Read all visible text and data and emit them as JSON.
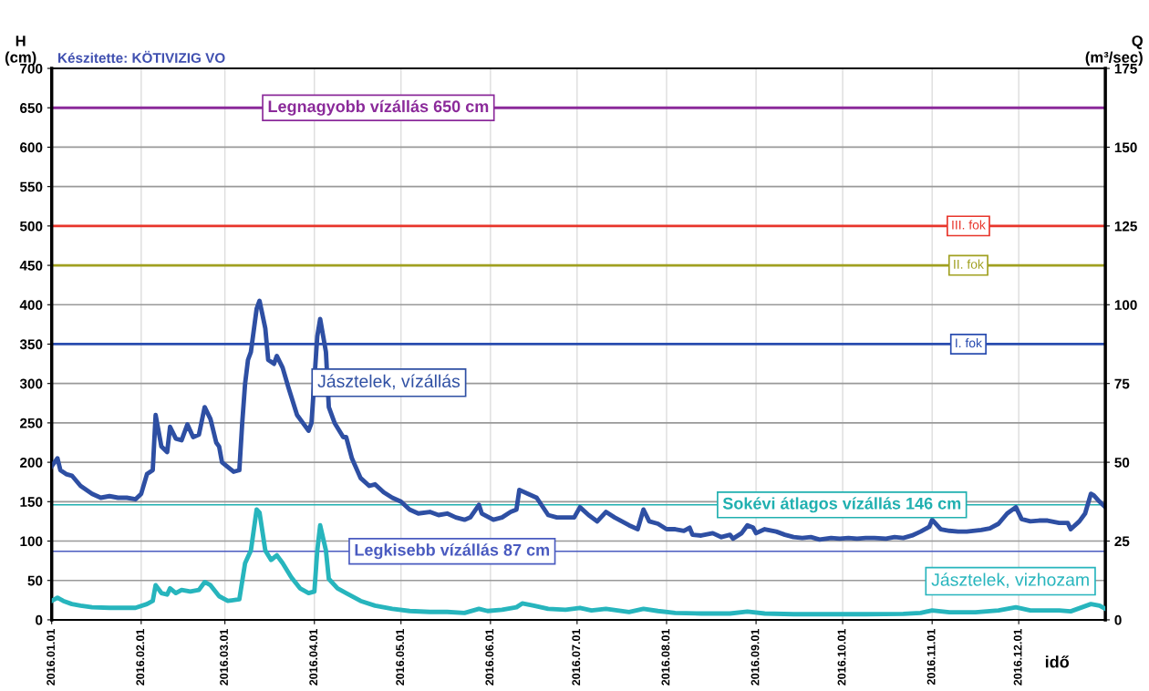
{
  "chart_data": {
    "type": "line",
    "ylabel": "H\n(cm)",
    "y2label": "Q\n(m³/sec)",
    "xlabel": "idő",
    "annotations": [
      "Készitette: KÖTIVIZIG VO"
    ],
    "xlim": [
      "2016-01-01",
      "2016-12-31"
    ],
    "xticks": [
      {
        "value": "2016-01-01",
        "label": "2016.01.01"
      },
      {
        "value": "2016-02-01",
        "label": "2016.02.01"
      },
      {
        "value": "2016-03-01",
        "label": "2016.03.01"
      },
      {
        "value": "2016-04-01",
        "label": "2016.04.01"
      },
      {
        "value": "2016-05-01",
        "label": "2016.05.01"
      },
      {
        "value": "2016-06-01",
        "label": "2016.06.01"
      },
      {
        "value": "2016-07-01",
        "label": "2016.07.01"
      },
      {
        "value": "2016-08-01",
        "label": "2016.08.01"
      },
      {
        "value": "2016-09-01",
        "label": "2016.09.01"
      },
      {
        "value": "2016-10-01",
        "label": "2016.10.01"
      },
      {
        "value": "2016-11-01",
        "label": "2016.11.01"
      },
      {
        "value": "2016-12-01",
        "label": "2016.12.01"
      }
    ],
    "ylim": [
      0,
      700
    ],
    "yticks": [
      0,
      50,
      100,
      150,
      200,
      250,
      300,
      350,
      400,
      450,
      500,
      550,
      600,
      650,
      700
    ],
    "y2lim": [
      0,
      175
    ],
    "y2ticks": [
      0,
      25,
      50,
      75,
      100,
      125,
      150,
      175
    ],
    "grid": true,
    "legend": false,
    "marker": "none",
    "line_style": "solid",
    "series": [
      {
        "name": "Jásztelek, vízállás",
        "color": "#2e4fa3",
        "x": [
          "2016-01-01",
          "2016-01-03",
          "2016-01-04",
          "2016-01-06",
          "2016-01-08",
          "2016-01-11",
          "2016-01-15",
          "2016-01-18",
          "2016-01-21",
          "2016-01-24",
          "2016-01-27",
          "2016-01-30",
          "2016-02-01",
          "2016-02-03",
          "2016-02-05",
          "2016-02-06",
          "2016-02-08",
          "2016-02-10",
          "2016-02-11",
          "2016-02-13",
          "2016-02-15",
          "2016-02-17",
          "2016-02-19",
          "2016-02-21",
          "2016-02-23",
          "2016-02-25",
          "2016-02-27",
          "2016-02-28",
          "2016-02-29",
          "2016-03-04",
          "2016-03-06",
          "2016-03-07",
          "2016-03-08",
          "2016-03-09",
          "2016-03-10",
          "2016-03-12",
          "2016-03-13",
          "2016-03-15",
          "2016-03-16",
          "2016-03-18",
          "2016-03-19",
          "2016-03-21",
          "2016-03-23",
          "2016-03-26",
          "2016-03-28",
          "2016-03-30",
          "2016-03-31",
          "2016-04-02",
          "2016-04-03",
          "2016-04-05",
          "2016-04-06",
          "2016-04-08",
          "2016-04-11",
          "2016-04-12",
          "2016-04-14",
          "2016-04-17",
          "2016-04-20",
          "2016-04-22",
          "2016-04-25",
          "2016-04-28",
          "2016-05-01",
          "2016-05-04",
          "2016-05-07",
          "2016-05-11",
          "2016-05-14",
          "2016-05-17",
          "2016-05-20",
          "2016-05-23",
          "2016-05-25",
          "2016-05-28",
          "2016-05-29",
          "2016-06-02",
          "2016-06-05",
          "2016-06-08",
          "2016-06-10",
          "2016-06-11",
          "2016-06-14",
          "2016-06-17",
          "2016-06-21",
          "2016-06-24",
          "2016-06-27",
          "2016-06-30",
          "2016-07-02",
          "2016-07-05",
          "2016-07-08",
          "2016-07-11",
          "2016-07-14",
          "2016-07-19",
          "2016-07-22",
          "2016-07-24",
          "2016-07-26",
          "2016-07-29",
          "2016-08-01",
          "2016-08-04",
          "2016-08-07",
          "2016-08-09",
          "2016-08-10",
          "2016-08-13",
          "2016-08-17",
          "2016-08-20",
          "2016-08-23",
          "2016-08-24",
          "2016-08-27",
          "2016-08-29",
          "2016-08-31",
          "2016-09-01",
          "2016-09-04",
          "2016-09-08",
          "2016-09-11",
          "2016-09-14",
          "2016-09-17",
          "2016-09-20",
          "2016-09-23",
          "2016-09-27",
          "2016-09-30",
          "2016-10-03",
          "2016-10-06",
          "2016-10-09",
          "2016-10-12",
          "2016-10-16",
          "2016-10-19",
          "2016-10-22",
          "2016-10-25",
          "2016-10-28",
          "2016-10-31",
          "2016-11-01",
          "2016-11-04",
          "2016-11-07",
          "2016-11-10",
          "2016-11-13",
          "2016-11-18",
          "2016-11-21",
          "2016-11-24",
          "2016-11-27",
          "2016-11-30",
          "2016-12-02",
          "2016-12-05",
          "2016-12-08",
          "2016-12-11",
          "2016-12-15",
          "2016-12-18",
          "2016-12-19",
          "2016-12-22",
          "2016-12-24",
          "2016-12-26",
          "2016-12-27",
          "2016-12-29",
          "2016-12-31"
        ],
        "values": [
          195,
          205,
          190,
          185,
          183,
          170,
          160,
          155,
          157,
          155,
          155,
          153,
          160,
          185,
          190,
          260,
          220,
          213,
          245,
          230,
          228,
          248,
          232,
          235,
          270,
          255,
          225,
          220,
          200,
          188,
          190,
          250,
          300,
          330,
          340,
          395,
          405,
          370,
          330,
          325,
          335,
          320,
          295,
          260,
          250,
          240,
          250,
          360,
          382,
          340,
          270,
          250,
          232,
          232,
          205,
          180,
          170,
          172,
          162,
          155,
          150,
          140,
          135,
          137,
          133,
          135,
          130,
          127,
          130,
          146,
          135,
          127,
          130,
          137,
          140,
          165,
          160,
          155,
          133,
          130,
          130,
          130,
          143,
          133,
          125,
          137,
          130,
          120,
          115,
          140,
          125,
          122,
          115,
          115,
          113,
          117,
          108,
          107,
          110,
          105,
          108,
          103,
          110,
          120,
          117,
          110,
          115,
          112,
          108,
          105,
          104,
          105,
          102,
          104,
          103,
          104,
          103,
          104,
          104,
          103,
          105,
          104,
          107,
          112,
          118,
          127,
          115,
          113,
          112,
          112,
          114,
          116,
          122,
          135,
          143,
          128,
          125,
          126,
          126,
          123,
          123,
          115,
          125,
          135,
          160,
          158,
          150,
          143
        ]
      },
      {
        "name": "Jásztelek, vizhozam",
        "color": "#27b5bd",
        "axis": "y2",
        "x": [
          "2016-01-01",
          "2016-01-03",
          "2016-01-05",
          "2016-01-08",
          "2016-01-11",
          "2016-01-15",
          "2016-01-21",
          "2016-01-30",
          "2016-02-03",
          "2016-02-05",
          "2016-02-06",
          "2016-02-08",
          "2016-02-10",
          "2016-02-11",
          "2016-02-13",
          "2016-02-15",
          "2016-02-18",
          "2016-02-21",
          "2016-02-23",
          "2016-02-25",
          "2016-02-28",
          "2016-03-02",
          "2016-03-06",
          "2016-03-08",
          "2016-03-10",
          "2016-03-12",
          "2016-03-13",
          "2016-03-15",
          "2016-03-17",
          "2016-03-19",
          "2016-03-21",
          "2016-03-24",
          "2016-03-27",
          "2016-03-30",
          "2016-04-01",
          "2016-04-02",
          "2016-04-03",
          "2016-04-05",
          "2016-04-06",
          "2016-04-09",
          "2016-04-12",
          "2016-04-17",
          "2016-04-22",
          "2016-04-28",
          "2016-05-04",
          "2016-05-11",
          "2016-05-17",
          "2016-05-23",
          "2016-05-28",
          "2016-05-31",
          "2016-06-05",
          "2016-06-10",
          "2016-06-12",
          "2016-06-16",
          "2016-06-21",
          "2016-06-27",
          "2016-07-02",
          "2016-07-06",
          "2016-07-11",
          "2016-07-19",
          "2016-07-24",
          "2016-07-29",
          "2016-08-04",
          "2016-08-13",
          "2016-08-23",
          "2016-08-29",
          "2016-09-04",
          "2016-09-14",
          "2016-09-23",
          "2016-10-09",
          "2016-10-22",
          "2016-10-28",
          "2016-11-01",
          "2016-11-07",
          "2016-11-16",
          "2016-11-24",
          "2016-11-30",
          "2016-12-05",
          "2016-12-15",
          "2016-12-19",
          "2016-12-26",
          "2016-12-29",
          "2016-12-31"
        ],
        "values": [
          6,
          7,
          6,
          5,
          4.5,
          4,
          3.8,
          3.8,
          5,
          6,
          11,
          8.5,
          8,
          10,
          8.5,
          9.5,
          9,
          9.5,
          12,
          11,
          7.5,
          6,
          6.5,
          18,
          22,
          35,
          34,
          22,
          19,
          20.5,
          18,
          13.5,
          10,
          8.5,
          9,
          22,
          30,
          22,
          13,
          10,
          8.5,
          6,
          4.5,
          3.5,
          2.8,
          2.5,
          2.5,
          2.2,
          3.5,
          2.8,
          3.2,
          4,
          5.2,
          4.5,
          3.5,
          3.2,
          3.8,
          3,
          3.5,
          2.5,
          3.5,
          2.8,
          2.2,
          2,
          2,
          2.6,
          2,
          1.8,
          1.8,
          1.8,
          1.9,
          2.2,
          3,
          2.4,
          2.4,
          3,
          4,
          3,
          3,
          2.7,
          5,
          4.5,
          3.5
        ]
      }
    ],
    "ref_lines": [
      {
        "axis": "y",
        "value": 650,
        "label": "Legnagyobb vízállás 650 cm",
        "color": "#8b2a9a"
      },
      {
        "axis": "y",
        "value": 500,
        "label": "III. fok",
        "color": "#e8352b"
      },
      {
        "axis": "y",
        "value": 450,
        "label": "II. fok",
        "color": "#a0a020"
      },
      {
        "axis": "y",
        "value": 350,
        "label": "I. fok",
        "color": "#2a4db0"
      },
      {
        "axis": "y",
        "value": 146,
        "label": "Sokévi átlagos vízállás 146 cm",
        "color": "#20b0b0"
      },
      {
        "axis": "y",
        "value": 87,
        "label": "Legkisebb vízállás 87 cm",
        "color": "#4a5bc0"
      }
    ]
  }
}
